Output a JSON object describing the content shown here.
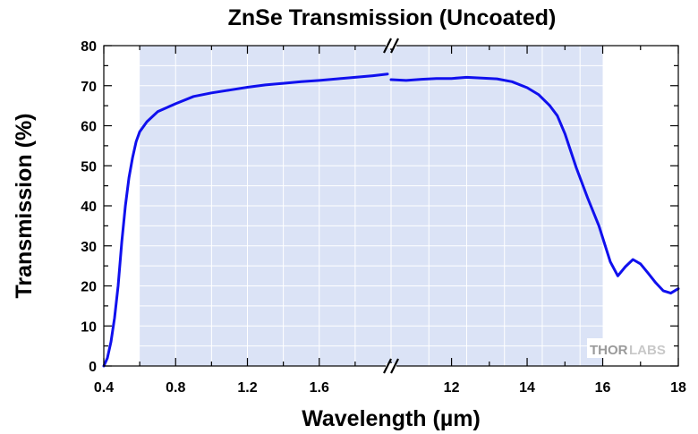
{
  "chart_data": {
    "type": "line",
    "title": "ZnSe Transmission (Uncoated)",
    "xlabel": "Wavelength (µm)",
    "ylabel": "Transmission (%)",
    "ylim": [
      0,
      80
    ],
    "yticks": [
      "0",
      "10",
      "20",
      "30",
      "40",
      "50",
      "60",
      "70",
      "80"
    ],
    "x_segments": [
      {
        "range": [
          0.4,
          2.0
        ],
        "ticks": [
          0.4,
          0.8,
          1.2,
          1.6
        ],
        "tick_labels": [
          "0.4",
          "0.8",
          "1.2",
          "1.6"
        ]
      },
      {
        "range": [
          10.4,
          18.0
        ],
        "ticks": [
          12,
          14,
          16,
          18
        ],
        "tick_labels": [
          "12",
          "14",
          "16",
          "18"
        ]
      }
    ],
    "axis_break": "between 2.0 and 10.4 µm",
    "shaded_region": [
      0.6,
      16.0
    ],
    "grid": true,
    "series": [
      {
        "color": "#1010ee",
        "segments": [
          [
            [
              0.4,
              0
            ],
            [
              0.42,
              2
            ],
            [
              0.44,
              6
            ],
            [
              0.46,
              12
            ],
            [
              0.48,
              20
            ],
            [
              0.5,
              31
            ],
            [
              0.52,
              40
            ],
            [
              0.54,
              47
            ],
            [
              0.56,
              52
            ],
            [
              0.58,
              56
            ],
            [
              0.6,
              58.5
            ],
            [
              0.64,
              61
            ],
            [
              0.7,
              63.5
            ],
            [
              0.8,
              65.5
            ],
            [
              0.9,
              67.3
            ],
            [
              1.0,
              68.2
            ],
            [
              1.1,
              68.9
            ],
            [
              1.2,
              69.6
            ],
            [
              1.3,
              70.2
            ],
            [
              1.4,
              70.6
            ],
            [
              1.5,
              71.0
            ],
            [
              1.6,
              71.3
            ],
            [
              1.7,
              71.7
            ],
            [
              1.8,
              72.1
            ],
            [
              1.9,
              72.5
            ],
            [
              1.98,
              72.9
            ]
          ],
          [
            [
              10.4,
              71.5
            ],
            [
              10.8,
              71.3
            ],
            [
              11.2,
              71.6
            ],
            [
              11.6,
              71.8
            ],
            [
              12.0,
              71.8
            ],
            [
              12.4,
              72.1
            ],
            [
              12.8,
              71.9
            ],
            [
              13.2,
              71.7
            ],
            [
              13.6,
              71.0
            ],
            [
              14.0,
              69.5
            ],
            [
              14.3,
              67.8
            ],
            [
              14.6,
              65.0
            ],
            [
              14.8,
              62.5
            ],
            [
              15.0,
              58.0
            ],
            [
              15.3,
              49.5
            ],
            [
              15.6,
              42.0
            ],
            [
              15.9,
              35.0
            ],
            [
              16.2,
              26.0
            ],
            [
              16.4,
              22.5
            ],
            [
              16.6,
              24.8
            ],
            [
              16.8,
              26.6
            ],
            [
              17.0,
              25.5
            ],
            [
              17.2,
              23.2
            ],
            [
              17.4,
              20.8
            ],
            [
              17.6,
              18.8
            ],
            [
              17.8,
              18.2
            ],
            [
              18.0,
              19.3
            ]
          ]
        ]
      }
    ]
  },
  "logo": {
    "text_a": "THOR",
    "text_b": "LABS"
  }
}
